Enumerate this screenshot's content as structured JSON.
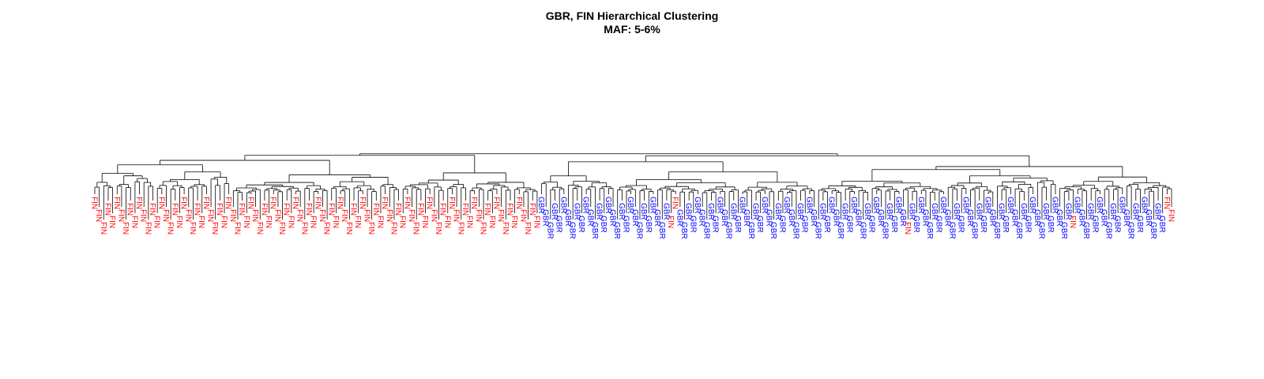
{
  "chart_data": {
    "type": "dendrogram",
    "title": "GBR, FIN Hierarchical Clustering",
    "subtitle": "MAF: 5-6%",
    "xlabel": "",
    "ylabel": "",
    "legend": "none",
    "axes": "none",
    "groups": [
      {
        "label": "FIN",
        "color": "#ff0000"
      },
      {
        "label": "GBR",
        "color": "#0000ff"
      }
    ],
    "leaf_order": "FFFFFFFFFFFFFFFFFFFFFFFFFFFFFFFFFFFFFFFFFFFFFFFFFFFFFFFFFFFFFFFFFFFFFFFFFFFFFFFFFFFFFFFFFFFFFFFFFFFFGGGGGGGGGGGGGGGGGGGGGGGGGGGGGFFGGGGGGGGGGGGGGGGGGGGGGGGGGGGGGGGGGGGGGGGGGGGGGGGGGGFGGGGGGGGGGGGGGGGGGGGGGGGGGGGGGGGGGGGFGGGGGGGGGGGGGGGGGGGGFF",
    "leaf_count": 199,
    "top_split": {
      "left_cluster": "FIN",
      "right_cluster": "GBR"
    }
  }
}
